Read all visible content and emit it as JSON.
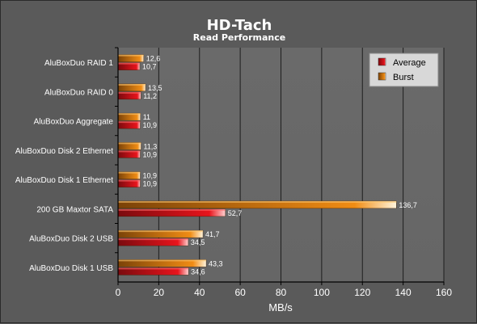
{
  "chart_data": {
    "type": "bar",
    "orientation": "horizontal",
    "title": "HD-Tach",
    "subtitle": "Read Performance",
    "xlabel": "MB/s",
    "ylabel": "",
    "xlim": [
      0,
      160
    ],
    "xticks": [
      "0",
      "20",
      "40",
      "60",
      "80",
      "100",
      "120",
      "140",
      "160"
    ],
    "grid": true,
    "legend_position": "top-right",
    "categories": [
      "AluBoxDuo RAID 1",
      "AluBoxDuo RAID 0",
      "AluBoxDuo Aggregate",
      "AluBoxDuo Disk 2 Ethernet",
      "AluBoxDuo Disk 1 Ethernet",
      "200 GB Maxtor SATA",
      "AluBoxDuo Disk 2 USB",
      "AluBoxDuo Disk 1 USB"
    ],
    "series": [
      {
        "name": "Average",
        "color": "#e8141c",
        "values": [
          10.7,
          11.2,
          10.9,
          10.9,
          10.9,
          52.7,
          34.5,
          34.6
        ],
        "labels": [
          "10,7",
          "11,2",
          "10,9",
          "10,9",
          "10,9",
          "52,7",
          "34,5",
          "34,6"
        ]
      },
      {
        "name": "Burst",
        "color": "#f08c14",
        "values": [
          12.6,
          13.5,
          11,
          11.3,
          10.9,
          136.7,
          41.7,
          43.3
        ],
        "labels": [
          "12,6",
          "13,5",
          "11",
          "11,3",
          "10,9",
          "136,7",
          "41,7",
          "43,3"
        ]
      }
    ]
  }
}
